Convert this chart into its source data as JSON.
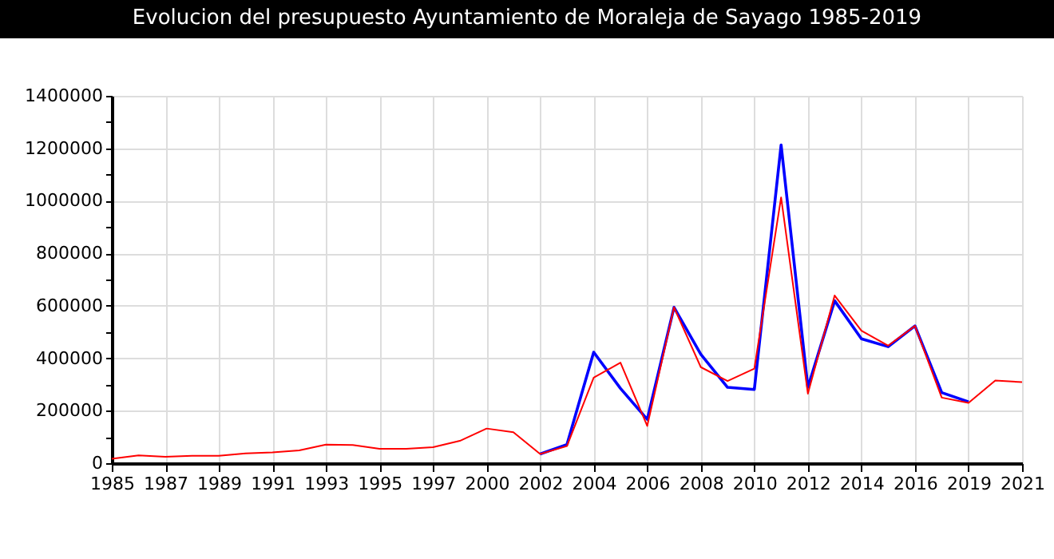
{
  "chart_data": {
    "type": "line",
    "title": "Evolucion del presupuesto Ayuntamiento de Moraleja de Sayago 1985-2019",
    "categories": [
      "1985",
      null,
      "1987",
      null,
      "1989",
      null,
      "1991",
      null,
      "1993",
      null,
      "1995",
      null,
      "1997",
      null,
      "2000",
      null,
      "2002",
      null,
      "2004",
      null,
      "2006",
      null,
      "2008",
      null,
      "2010",
      null,
      "2012",
      null,
      "2014",
      null,
      "2016",
      null,
      "2019",
      null,
      "2021"
    ],
    "series": [
      {
        "color": "#0000ff",
        "values": [
          null,
          null,
          null,
          null,
          null,
          null,
          null,
          null,
          null,
          null,
          null,
          null,
          null,
          null,
          null,
          null,
          35000,
          71000,
          423000,
          285000,
          167000,
          594000,
          415000,
          289000,
          281000,
          1213000,
          289000,
          619000,
          474000,
          444000,
          523000,
          269000,
          234000,
          null,
          null
        ]
      },
      {
        "color": "#ff0000",
        "values": [
          17000,
          30000,
          24000,
          28000,
          28000,
          37000,
          41000,
          49000,
          71000,
          69000,
          55000,
          55000,
          61000,
          85000,
          132000,
          118000,
          35000,
          65000,
          326000,
          383000,
          142000,
          594000,
          366000,
          313000,
          360000,
          1013000,
          265000,
          639000,
          505000,
          448000,
          523000,
          250000,
          230000,
          315000,
          309000
        ]
      }
    ],
    "ylim": [
      0,
      1400000
    ],
    "yticks": [
      0,
      {
        "value": 100000,
        "label": null
      },
      200000,
      {
        "value": 300000,
        "label": null
      },
      400000,
      {
        "value": 500000,
        "label": null
      },
      600000,
      {
        "value": 700000,
        "label": null
      },
      800000,
      {
        "value": 900000,
        "label": null
      },
      1000000,
      {
        "value": 1100000,
        "label": null
      },
      1200000,
      {
        "value": 1300000,
        "label": null
      },
      1400000
    ],
    "grid": true,
    "line_style": "solid",
    "marker": "none"
  }
}
